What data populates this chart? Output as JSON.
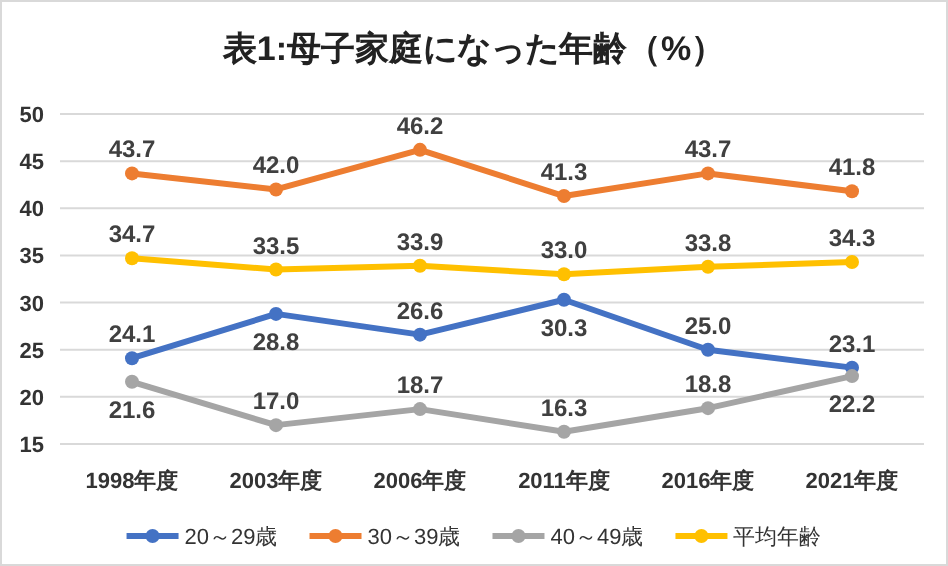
{
  "chart_data": {
    "type": "line",
    "title": "表1:母子家庭になった年齢（%）",
    "categories": [
      "1998年度",
      "2003年度",
      "2006年度",
      "2011年度",
      "2016年度",
      "2021年度"
    ],
    "series": [
      {
        "name": "20～29歳",
        "color": "#4472c4",
        "values": [
          24.1,
          28.8,
          26.6,
          30.3,
          25.0,
          23.1
        ],
        "value_labels": [
          "24.1",
          "28.8",
          "26.6",
          "30.3",
          "25.0",
          "23.1"
        ]
      },
      {
        "name": "30～39歳",
        "color": "#ed7d31",
        "values": [
          43.7,
          42.0,
          46.2,
          41.3,
          43.7,
          41.8
        ],
        "value_labels": [
          "43.7",
          "42.0",
          "46.2",
          "41.3",
          "43.7",
          "41.8"
        ]
      },
      {
        "name": "40～49歳",
        "color": "#a5a5a5",
        "values": [
          21.6,
          17.0,
          18.7,
          16.3,
          18.8,
          22.2
        ],
        "value_labels": [
          "21.6",
          "17.0",
          "18.7",
          "16.3",
          "18.8",
          "22.2"
        ]
      },
      {
        "name": "平均年齢",
        "color": "#ffc000",
        "values": [
          34.7,
          33.5,
          33.9,
          33.0,
          33.8,
          34.3
        ],
        "value_labels": [
          "34.7",
          "33.5",
          "33.9",
          "33.0",
          "33.8",
          "34.3"
        ]
      }
    ],
    "ylim": [
      15,
      50
    ],
    "yticks": [
      15,
      20,
      25,
      30,
      35,
      40,
      45,
      50
    ],
    "grid": "y",
    "legend": "bottom",
    "marker": "circle",
    "line_style": "solid"
  }
}
